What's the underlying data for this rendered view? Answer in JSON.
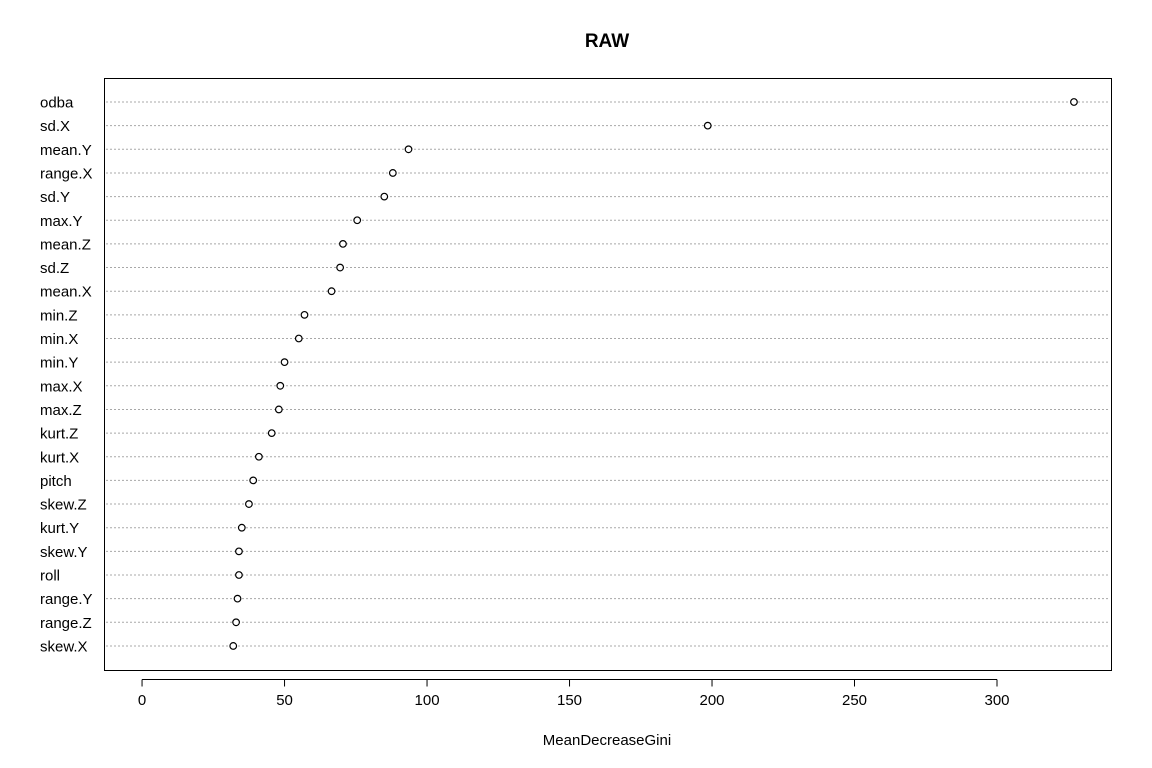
{
  "chart_data": {
    "type": "scatter",
    "title": "RAW",
    "xlabel": "MeanDecreaseGini",
    "ylabel": "",
    "xlim": [
      -13,
      340
    ],
    "xticks": [
      0,
      50,
      100,
      150,
      200,
      250,
      300
    ],
    "grid": "dotted horizontal lines per variable",
    "legend": "none",
    "points": [
      {
        "label": "odba",
        "value": 327
      },
      {
        "label": "sd.X",
        "value": 198.5
      },
      {
        "label": "mean.Y",
        "value": 93.5
      },
      {
        "label": "range.X",
        "value": 88
      },
      {
        "label": "sd.Y",
        "value": 85
      },
      {
        "label": "max.Y",
        "value": 75.5
      },
      {
        "label": "mean.Z",
        "value": 70.5
      },
      {
        "label": "sd.Z",
        "value": 69.5
      },
      {
        "label": "mean.X",
        "value": 66.5
      },
      {
        "label": "min.Z",
        "value": 57
      },
      {
        "label": "min.X",
        "value": 55
      },
      {
        "label": "min.Y",
        "value": 50
      },
      {
        "label": "max.X",
        "value": 48.5
      },
      {
        "label": "max.Z",
        "value": 48
      },
      {
        "label": "kurt.Z",
        "value": 45.5
      },
      {
        "label": "kurt.X",
        "value": 41
      },
      {
        "label": "pitch",
        "value": 39
      },
      {
        "label": "skew.Z",
        "value": 37.5
      },
      {
        "label": "kurt.Y",
        "value": 35
      },
      {
        "label": "skew.Y",
        "value": 34
      },
      {
        "label": "roll",
        "value": 34
      },
      {
        "label": "range.Y",
        "value": 33.5
      },
      {
        "label": "range.Z",
        "value": 33
      },
      {
        "label": "skew.X",
        "value": 32
      }
    ]
  }
}
